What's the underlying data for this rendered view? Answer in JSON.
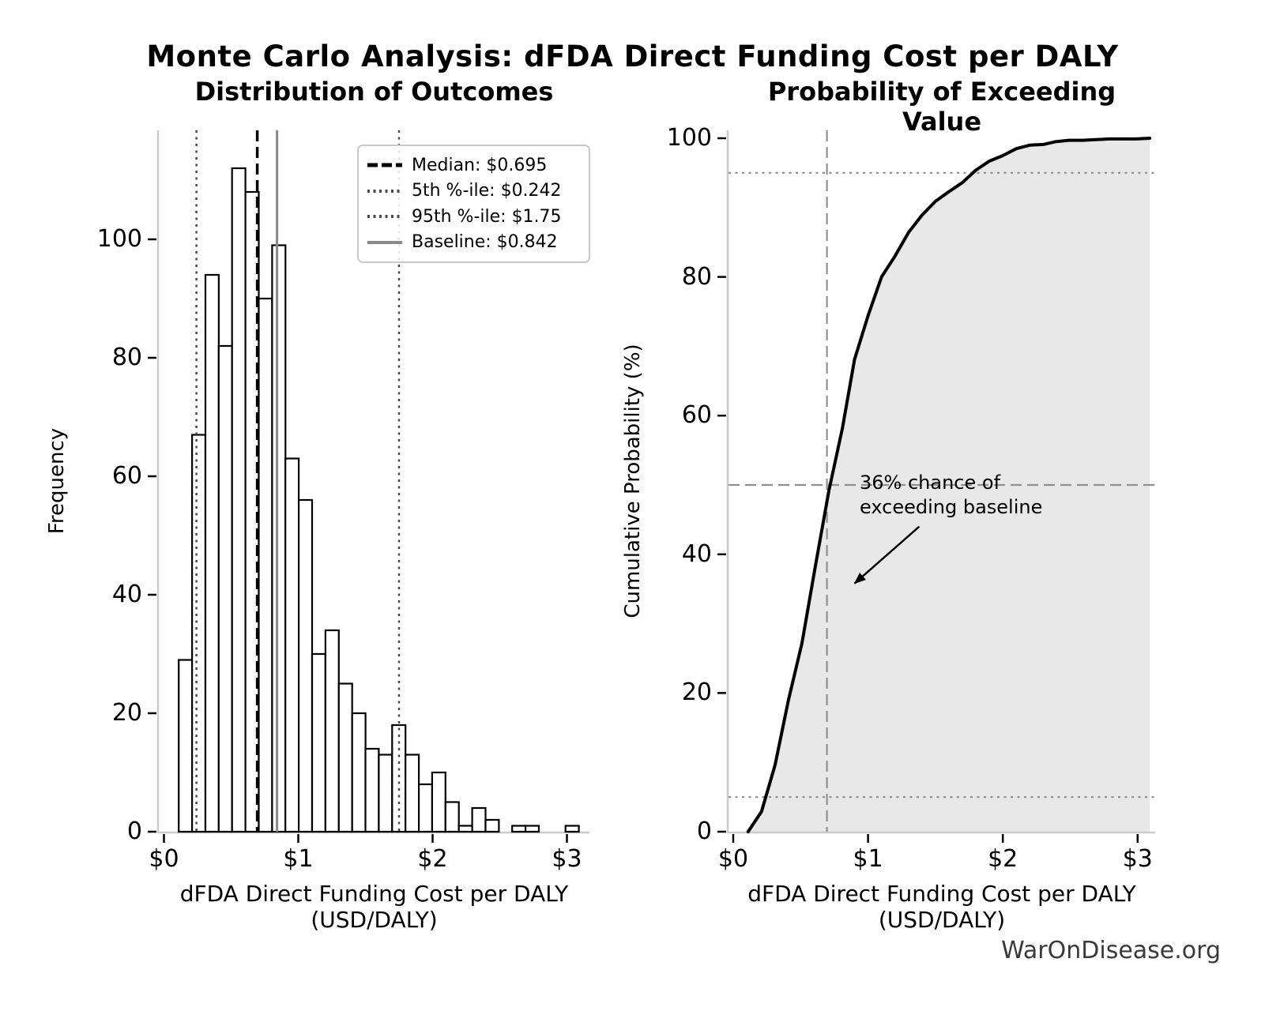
{
  "figure": {
    "title": "Monte Carlo Analysis: dFDA Direct Funding Cost per DALY",
    "footer": "WarOnDisease.org",
    "background_color": "#ffffff",
    "footer_color": "#3a3a3a"
  },
  "chart_data": [
    {
      "type": "bar",
      "subtype": "histogram",
      "title": "Distribution of Outcomes",
      "xlabel": "dFDA Direct Funding Cost per DALY (USD/DALY)",
      "ylabel": "Frequency",
      "x_tick_labels": [
        "$0",
        "$1",
        "$2",
        "$3"
      ],
      "x_tick_values": [
        0,
        1,
        2,
        3
      ],
      "y_tick_labels": [
        "0",
        "20",
        "40",
        "60",
        "80",
        "100"
      ],
      "y_tick_values": [
        0,
        20,
        40,
        60,
        80,
        100
      ],
      "xlim": [
        -0.04,
        3.17
      ],
      "ylim": [
        0,
        118.4
      ],
      "grid": false,
      "bin_start": 0.11,
      "bin_width": 0.0993,
      "bar_fill": "#ffffff",
      "bar_edge": "#000000",
      "frequencies": [
        29,
        67,
        94,
        82,
        112,
        108,
        90,
        99,
        63,
        56,
        30,
        34,
        25,
        20,
        14,
        13,
        18,
        13,
        8,
        10,
        5,
        1,
        4,
        2,
        0,
        1,
        1,
        0,
        0,
        1
      ],
      "vlines": [
        {
          "label": "Median: $0.695",
          "value": 0.695,
          "style": "dashed",
          "color": "#000000",
          "width": 3.5
        },
        {
          "label": "5th %-ile: $0.242",
          "value": 0.242,
          "style": "dotted",
          "color": "#4a4a4a",
          "width": 2.5
        },
        {
          "label": "95th %-ile: $1.75",
          "value": 1.75,
          "style": "dotted",
          "color": "#4a4a4a",
          "width": 2.5
        },
        {
          "label": "Baseline: $0.842",
          "value": 0.842,
          "style": "solid",
          "color": "#8a8a8a",
          "width": 3
        }
      ],
      "legend_location": "upper right"
    },
    {
      "type": "area",
      "subtype": "empirical-cdf",
      "title": "Probability of Exceeding Value",
      "xlabel": "dFDA Direct Funding Cost per DALY (USD/DALY)",
      "ylabel": "Cumulative Probability (%)",
      "x_tick_labels": [
        "$0",
        "$1",
        "$2",
        "$3"
      ],
      "x_tick_values": [
        0,
        1,
        2,
        3
      ],
      "y_tick_labels": [
        "0",
        "20",
        "40",
        "60",
        "80",
        "100"
      ],
      "y_tick_values": [
        0,
        20,
        40,
        60,
        80,
        100
      ],
      "xlim": [
        -0.04,
        3.13
      ],
      "ylim": [
        0,
        101.2
      ],
      "grid": false,
      "line_color": "#000000",
      "fill_color": "#e8e8e8",
      "series": [
        {
          "name": "Empirical CDF",
          "x": [
            0.11,
            0.21,
            0.31,
            0.41,
            0.51,
            0.61,
            0.71,
            0.81,
            0.9,
            1.0,
            1.1,
            1.2,
            1.3,
            1.4,
            1.5,
            1.6,
            1.7,
            1.8,
            1.9,
            2.0,
            2.1,
            2.2,
            2.3,
            2.39,
            2.49,
            2.59,
            2.69,
            2.79,
            2.89,
            2.99,
            3.09
          ],
          "y": [
            0,
            2.9,
            9.6,
            19.0,
            27.2,
            38.4,
            49.2,
            58.2,
            68.1,
            74.4,
            80.0,
            83.0,
            86.4,
            88.9,
            90.9,
            92.3,
            93.6,
            95.4,
            96.7,
            97.5,
            98.5,
            99.0,
            99.1,
            99.5,
            99.7,
            99.7,
            99.8,
            99.9,
            99.9,
            99.9,
            100
          ]
        }
      ],
      "hlines": [
        {
          "value": 50,
          "style": "dashed",
          "color": "#909090",
          "width": 2.2
        },
        {
          "value": 95,
          "style": "dotted",
          "color": "#909090",
          "width": 2.2
        },
        {
          "value": 5,
          "style": "dotted",
          "color": "#909090",
          "width": 2.2
        }
      ],
      "vlines": [
        {
          "value": 0.695,
          "style": "dashed",
          "color": "#909090",
          "width": 2.2
        }
      ],
      "annotation": {
        "lines": [
          "36% chance of",
          "exceeding baseline"
        ],
        "text_xy": [
          0.94,
          52.0
        ],
        "arrow_from": [
          1.38,
          44.0
        ],
        "arrow_to": [
          0.9,
          35.8
        ]
      }
    }
  ]
}
